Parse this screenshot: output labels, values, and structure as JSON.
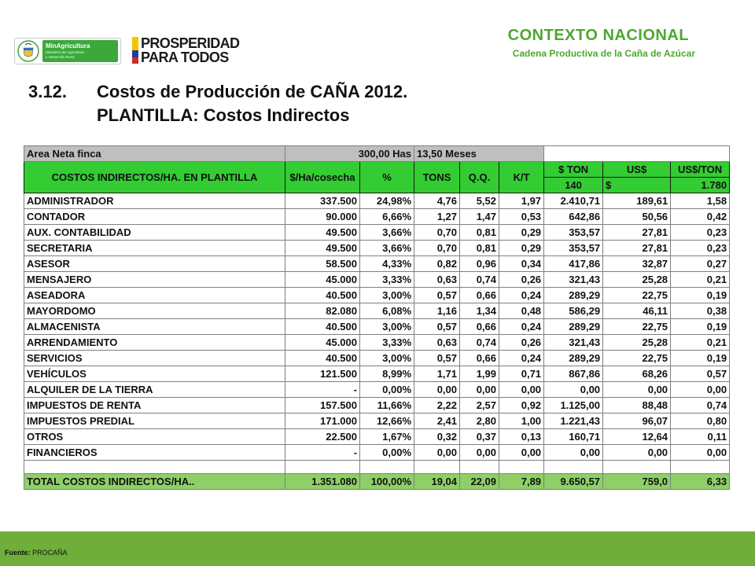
{
  "logos": {
    "ministry_name": "MinAgricultura",
    "ministry_subtitle_1": "Ministerio de Agricultura",
    "ministry_subtitle_2": "y Desarrollo Rural",
    "slogan_line1": "PROSPERIDAD",
    "slogan_line2": "PARA TODOS"
  },
  "header": {
    "title": "CONTEXTO NACIONAL",
    "subtitle": "Cadena Productiva de la Caña de Azúcar"
  },
  "section": {
    "number": "3.12.",
    "title_line1": "Costos de Producción de CAÑA 2012.",
    "title_line2": "PLANTILLA: Costos Indirectos"
  },
  "table": {
    "info": {
      "label": "Area Neta finca",
      "area": "300,00 Has",
      "duration": "13,50 Meses"
    },
    "headers": {
      "concept": "COSTOS INDIRECTOS/HA. EN PLANTILLA",
      "cost_per_ha": "$/Ha/cosecha",
      "percent": "%",
      "tons": "TONS",
      "qq": "Q.Q.",
      "kt": "K/T",
      "cost_ton": "$ TON",
      "usd": "US$",
      "usd_ton": "US$/TON"
    },
    "subheader": {
      "cost_ton_value": "140",
      "currency_symbol": "$",
      "exchange_rate": "1.780"
    },
    "rows": [
      {
        "concept": "ADMINISTRADOR",
        "cost": "337.500",
        "pct": "24,98%",
        "tons": "4,76",
        "qq": "5,52",
        "kt": "1,97",
        "ton": "2.410,71",
        "usd": "189,61",
        "usdton": "1,58"
      },
      {
        "concept": "CONTADOR",
        "cost": "90.000",
        "pct": "6,66%",
        "tons": "1,27",
        "qq": "1,47",
        "kt": "0,53",
        "ton": "642,86",
        "usd": "50,56",
        "usdton": "0,42"
      },
      {
        "concept": "AUX. CONTABILIDAD",
        "cost": "49.500",
        "pct": "3,66%",
        "tons": "0,70",
        "qq": "0,81",
        "kt": "0,29",
        "ton": "353,57",
        "usd": "27,81",
        "usdton": "0,23"
      },
      {
        "concept": "SECRETARIA",
        "cost": "49.500",
        "pct": "3,66%",
        "tons": "0,70",
        "qq": "0,81",
        "kt": "0,29",
        "ton": "353,57",
        "usd": "27,81",
        "usdton": "0,23"
      },
      {
        "concept": "ASESOR",
        "cost": "58.500",
        "pct": "4,33%",
        "tons": "0,82",
        "qq": "0,96",
        "kt": "0,34",
        "ton": "417,86",
        "usd": "32,87",
        "usdton": "0,27"
      },
      {
        "concept": "MENSAJERO",
        "cost": "45.000",
        "pct": "3,33%",
        "tons": "0,63",
        "qq": "0,74",
        "kt": "0,26",
        "ton": "321,43",
        "usd": "25,28",
        "usdton": "0,21"
      },
      {
        "concept": "ASEADORA",
        "cost": "40.500",
        "pct": "3,00%",
        "tons": "0,57",
        "qq": "0,66",
        "kt": "0,24",
        "ton": "289,29",
        "usd": "22,75",
        "usdton": "0,19"
      },
      {
        "concept": "MAYORDOMO",
        "cost": "82.080",
        "pct": "6,08%",
        "tons": "1,16",
        "qq": "1,34",
        "kt": "0,48",
        "ton": "586,29",
        "usd": "46,11",
        "usdton": "0,38"
      },
      {
        "concept": "ALMACENISTA",
        "cost": "40.500",
        "pct": "3,00%",
        "tons": "0,57",
        "qq": "0,66",
        "kt": "0,24",
        "ton": "289,29",
        "usd": "22,75",
        "usdton": "0,19"
      },
      {
        "concept": "ARRENDAMIENTO",
        "cost": "45.000",
        "pct": "3,33%",
        "tons": "0,63",
        "qq": "0,74",
        "kt": "0,26",
        "ton": "321,43",
        "usd": "25,28",
        "usdton": "0,21"
      },
      {
        "concept": "SERVICIOS",
        "cost": "40.500",
        "pct": "3,00%",
        "tons": "0,57",
        "qq": "0,66",
        "kt": "0,24",
        "ton": "289,29",
        "usd": "22,75",
        "usdton": "0,19"
      },
      {
        "concept": "VEHÍCULOS",
        "cost": "121.500",
        "pct": "8,99%",
        "tons": "1,71",
        "qq": "1,99",
        "kt": "0,71",
        "ton": "867,86",
        "usd": "68,26",
        "usdton": "0,57"
      },
      {
        "concept": "ALQUILER DE LA TIERRA",
        "cost": "-",
        "pct": "0,00%",
        "tons": "0,00",
        "qq": "0,00",
        "kt": "0,00",
        "ton": "0,00",
        "usd": "0,00",
        "usdton": "0,00"
      },
      {
        "concept": "IMPUESTOS DE RENTA",
        "cost": "157.500",
        "pct": "11,66%",
        "tons": "2,22",
        "qq": "2,57",
        "kt": "0,92",
        "ton": "1.125,00",
        "usd": "88,48",
        "usdton": "0,74"
      },
      {
        "concept": "IMPUESTOS PREDIAL",
        "cost": "171.000",
        "pct": "12,66%",
        "tons": "2,41",
        "qq": "2,80",
        "kt": "1,00",
        "ton": "1.221,43",
        "usd": "96,07",
        "usdton": "0,80"
      },
      {
        "concept": "OTROS",
        "cost": "22.500",
        "pct": "1,67%",
        "tons": "0,32",
        "qq": "0,37",
        "kt": "0,13",
        "ton": "160,71",
        "usd": "12,64",
        "usdton": "0,11"
      },
      {
        "concept": "FINANCIEROS",
        "cost": "-",
        "pct": "0,00%",
        "tons": "0,00",
        "qq": "0,00",
        "kt": "0,00",
        "ton": "0,00",
        "usd": "0,00",
        "usdton": "0,00"
      }
    ],
    "total": {
      "concept": "TOTAL COSTOS INDIRECTOS/HA..",
      "cost": "1.351.080",
      "pct": "100,00%",
      "tons": "19,04",
      "qq": "22,09",
      "kt": "7,89",
      "ton": "9.650,57",
      "usd": "759,0",
      "usdton": "6,33"
    }
  },
  "footer": {
    "source_label": "Fuente:",
    "source_value": "PROCAÑA"
  },
  "colors": {
    "accent_green": "#4ea72e",
    "header_green": "#33cc33",
    "total_green": "#8fcf68",
    "footer_green": "#6fae3a"
  }
}
